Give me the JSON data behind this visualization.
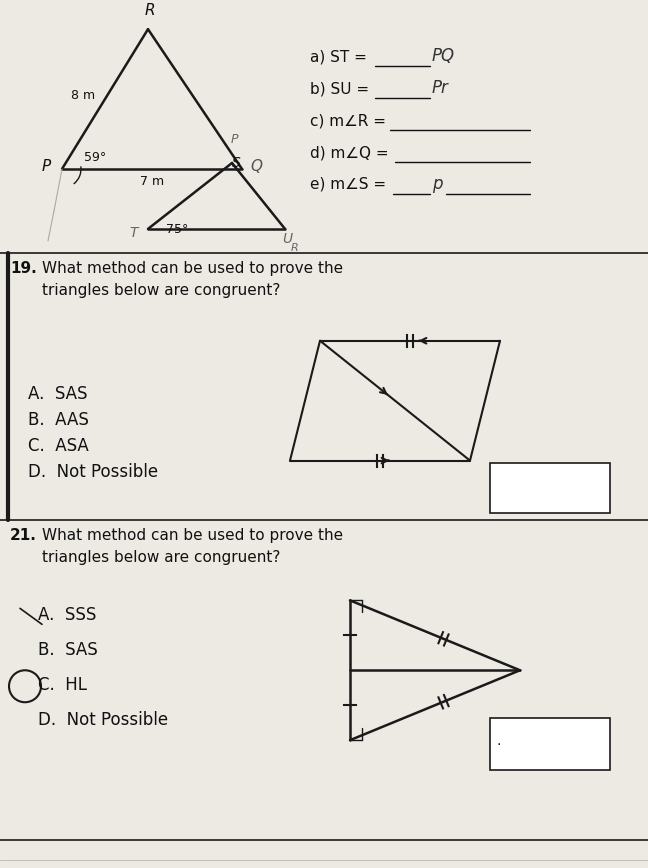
{
  "paper_color": "#ede9e3",
  "line_color": "#1a1a1a",
  "text_color": "#111111",
  "gray_text": "#555555",
  "q19_options": [
    "A.  SAS",
    "B.  AAS",
    "C.  ASA",
    "D.  Not Possible"
  ],
  "q21_options": [
    "A.  SSS",
    "B.  SAS",
    "C.  HL",
    "D.  Not Possible"
  ]
}
